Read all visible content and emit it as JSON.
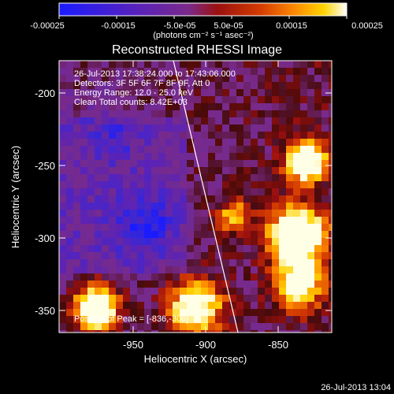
{
  "colorbar": {
    "tick_labels": [
      "-0.00025",
      "-0.00015",
      "-5.0e-05",
      "5.0e-05",
      "0.00015",
      "0.00025"
    ],
    "units_label": "(photons cm⁻² s⁻¹ asec⁻²)",
    "colors": [
      "#1b1bff",
      "#5a22b8",
      "#7a2a8a",
      "#9b1010",
      "#d33b00",
      "#ff8a00",
      "#ffd400",
      "#ffffff"
    ]
  },
  "plot": {
    "title": "Reconstructed RHESSI Image",
    "annotations": [
      "26-Jul-2013 17:38:24.000 to 17:43:06.000",
      "Detectors: 3F 5F 6F 7F 8F 9F, Att 0",
      "Energy Range: 12.0 - 25.0 keV",
      "Clean     Total counts: 8.42E+03"
    ],
    "peak_label": "Position of Peak = [-836,-306]",
    "x_label": "Heliocentric X (arcsec)",
    "y_label": "Heliocentric Y (arcsec)",
    "x_ticks": [
      "-950",
      "-900",
      "-850"
    ],
    "y_ticks": [
      "-200",
      "-250",
      "-300",
      "-350"
    ]
  },
  "footer": {
    "timestamp": "26-Jul-2013 13:04"
  }
}
